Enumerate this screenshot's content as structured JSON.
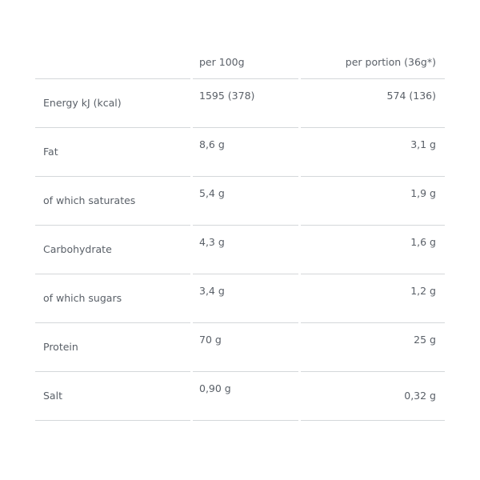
{
  "header": {
    "col_per100": "per 100g",
    "col_portion": "per portion (36g*)"
  },
  "rows": [
    {
      "label": "Energy kJ (kcal)",
      "per100": "1595 (378)",
      "portion": "574 (136)"
    },
    {
      "label": "Fat",
      "per100": "8,6 g",
      "portion": "3,1 g"
    },
    {
      "label": "of which saturates",
      "per100": "5,4 g",
      "portion": "1,9 g"
    },
    {
      "label": "Carbohydrate",
      "per100": "4,3 g",
      "portion": "1,6 g"
    },
    {
      "label": "of which sugars",
      "per100": "3,4 g",
      "portion": "1,2 g"
    },
    {
      "label": "Protein",
      "per100": "70 g",
      "portion": "25 g"
    },
    {
      "label": "Salt",
      "per100": "0,90 g",
      "portion": "0,32 g"
    }
  ]
}
